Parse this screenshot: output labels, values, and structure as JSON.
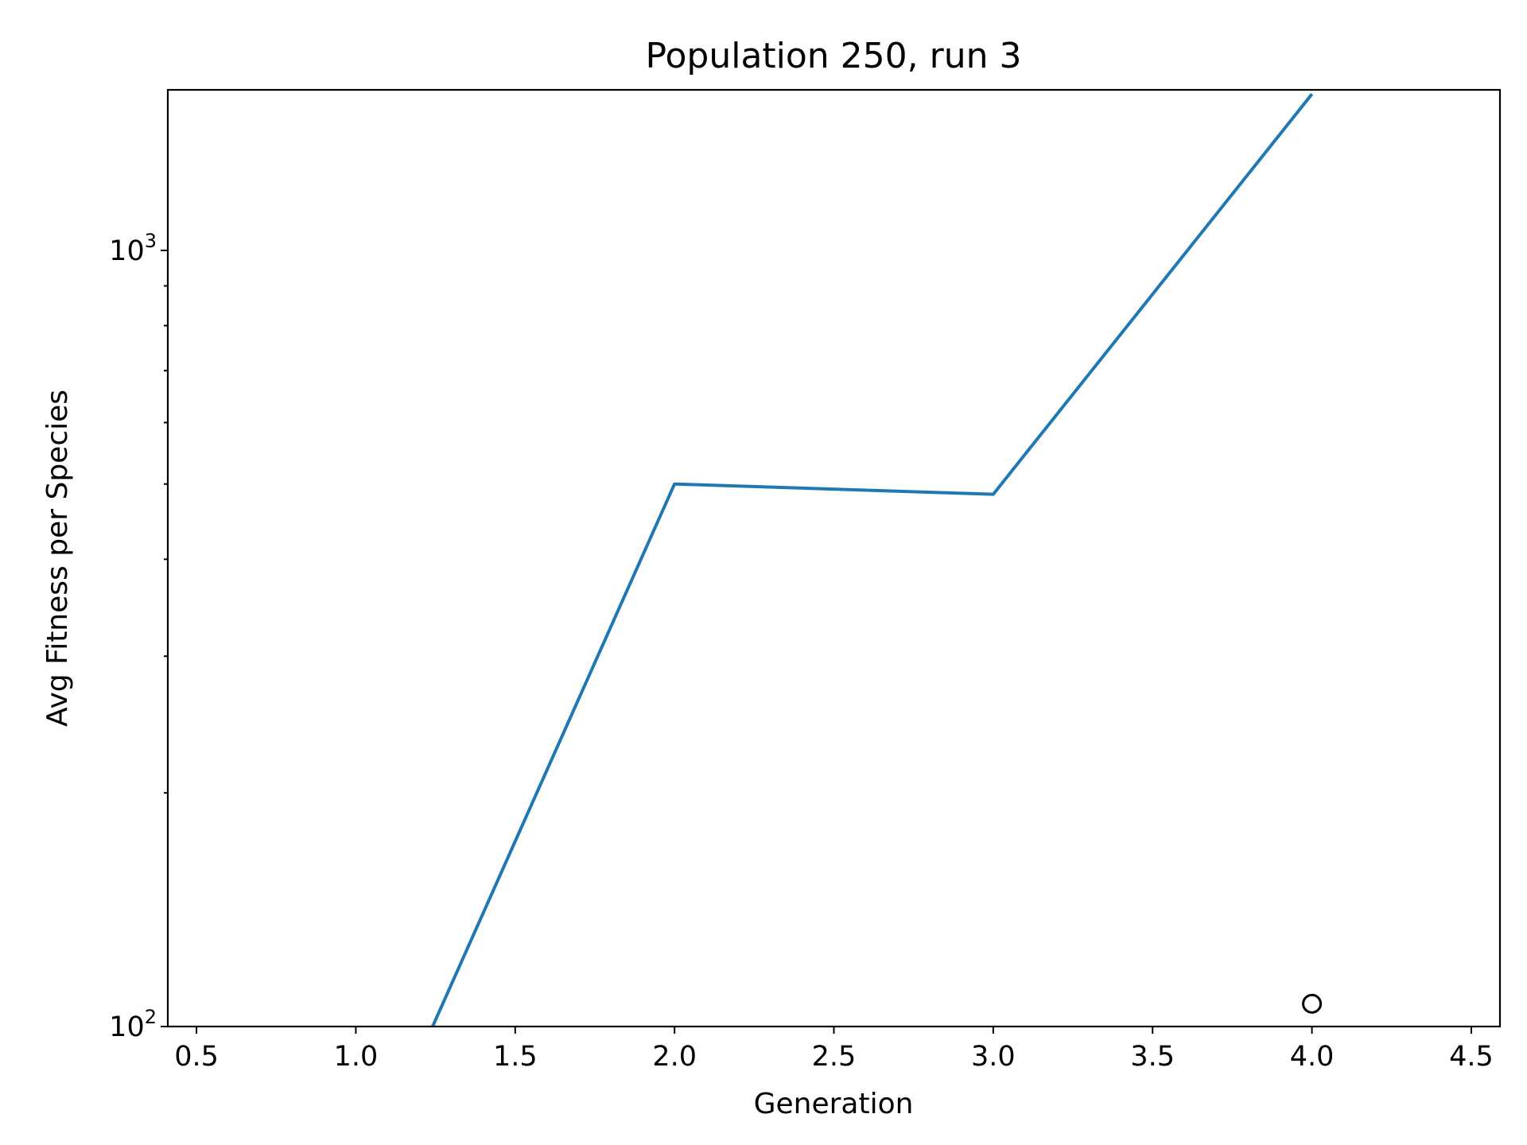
{
  "chart_data": {
    "type": "line",
    "title": "Population 250, run 3",
    "xlabel": "Generation",
    "ylabel": "Avg Fitness per Species",
    "xlim": [
      0.41,
      4.59
    ],
    "ylim": [
      100,
      1610
    ],
    "y_scale": "log",
    "grid": false,
    "x_ticks": [
      "0.5",
      "1.0",
      "1.5",
      "2.0",
      "2.5",
      "3.0",
      "3.5",
      "4.0",
      "4.5"
    ],
    "x_tick_values": [
      0.5,
      1.0,
      1.5,
      2.0,
      2.5,
      3.0,
      3.5,
      4.0,
      4.5
    ],
    "y_major_ticks": [
      {
        "value": 100,
        "base": "10",
        "exp": "2"
      },
      {
        "value": 1000,
        "base": "10",
        "exp": "3"
      }
    ],
    "y_minor_ticks": [
      200,
      300,
      400,
      500,
      600,
      700,
      800,
      900
    ],
    "series": [
      {
        "color": "#1f77b4",
        "x": [
          1.0,
          2.0,
          3.0,
          4.0
        ],
        "y": [
          60,
          500,
          485,
          1590
        ]
      }
    ],
    "markers": [
      {
        "x": 4.0,
        "y": 107,
        "style": "open-circle",
        "color": "#000000"
      }
    ]
  }
}
